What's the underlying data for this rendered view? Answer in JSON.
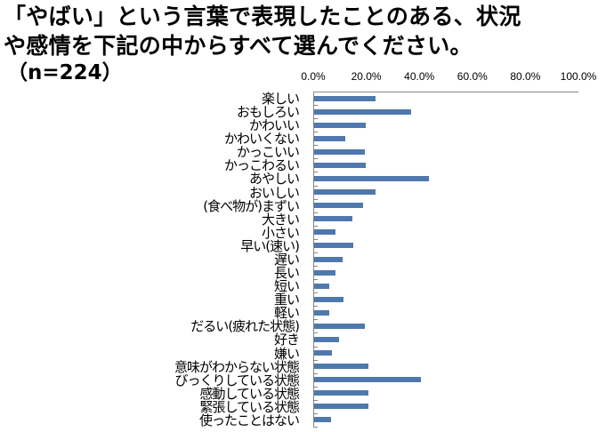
{
  "title": {
    "line1": "「やばい」という言葉で表現したことのある、状況",
    "line2": "や感情を下記の中からすべて選んでください。",
    "sample": "（n=224）"
  },
  "colors": {
    "bar": "#4f79ad",
    "axis": "#868686"
  },
  "chart_data": {
    "type": "bar",
    "orientation": "horizontal",
    "title": "「やばい」という言葉で表現したことのある、状況や感情を下記の中からすべて選んでください。（n=224）",
    "xlabel": "",
    "ylabel": "",
    "xlim": [
      0,
      100
    ],
    "x_ticks": [
      "0.0%",
      "20.0%",
      "40.0%",
      "60.0%",
      "80.0%",
      "100.0%"
    ],
    "x_axis_position": "top",
    "grid": false,
    "legend": null,
    "categories": [
      "楽しい",
      "おもしろい",
      "かわいい",
      "かわいくない",
      "かっこいい",
      "かっこわるい",
      "あやしい",
      "おいしい",
      "(食べ物が)まずい",
      "大きい",
      "小さい",
      "早い(速い)",
      "遅い",
      "長い",
      "短い",
      "重い",
      "軽い",
      "だるい(疲れた状態)",
      "好き",
      "嫌い",
      "意味がわからない状態",
      "びっくりしている状態",
      "感動している状態",
      "緊張している状態",
      "使ったことはない"
    ],
    "values": [
      23.2,
      36.6,
      19.6,
      11.6,
      19.2,
      19.6,
      43.3,
      23.2,
      18.3,
      14.3,
      8.0,
      14.7,
      10.7,
      8.0,
      5.8,
      11.2,
      5.8,
      19.2,
      9.4,
      6.7,
      20.5,
      40.2,
      20.5,
      20.5,
      6.3
    ],
    "unit": "%"
  }
}
